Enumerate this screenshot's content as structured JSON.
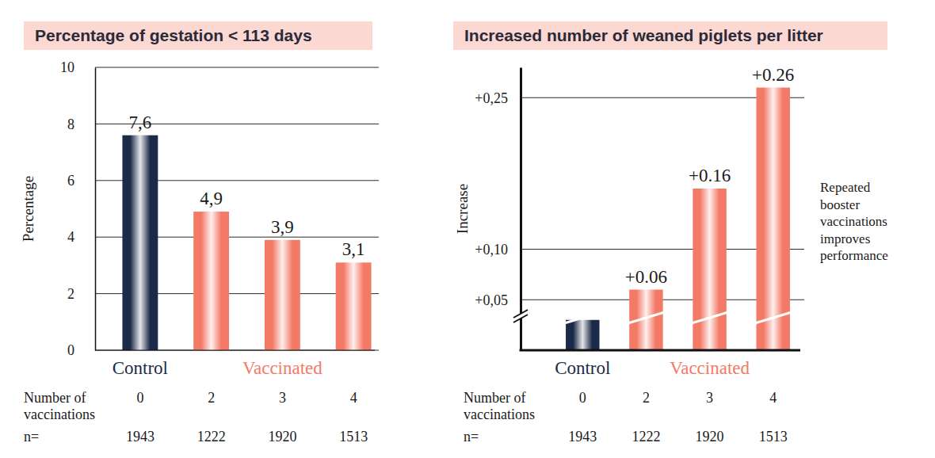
{
  "chart_data": [
    {
      "type": "bar",
      "title": "Percentage of gestation < 113 days",
      "y_label": "Percentage",
      "categories": [
        "Control",
        null,
        "Vaccinated",
        null
      ],
      "values": [
        7.6,
        4.9,
        3.9,
        3.1
      ],
      "value_labels": [
        "7,6",
        "4,9",
        "3,9",
        "3,1"
      ],
      "colors": [
        "#1b2a48",
        "#f47a68",
        "#f47a68",
        "#f47a68"
      ],
      "ylim": [
        0,
        10
      ],
      "yticks": [
        0,
        2,
        4,
        6,
        8,
        10
      ],
      "grid": true,
      "data_labels": true,
      "vaccinations_label": "Number of vaccinations",
      "vaccinations": [
        0,
        2,
        3,
        4
      ],
      "n_label": "n=",
      "n": [
        1943,
        1222,
        1920,
        1513
      ]
    },
    {
      "type": "bar",
      "title": "Increased number of weaned piglets per litter",
      "y_label": "Increase",
      "categories": [
        "Control",
        null,
        "Vaccinated",
        null
      ],
      "values": [
        0.03,
        0.06,
        0.16,
        0.26
      ],
      "value_labels": [
        null,
        "+0.06",
        "+0.16",
        "+0.26"
      ],
      "colors": [
        "#1b2a48",
        "#f47a68",
        "#f47a68",
        "#f47a68"
      ],
      "ylim": [
        0,
        0.28
      ],
      "yticks": [
        {
          "value": 0.05,
          "label": "+0,05"
        },
        {
          "value": 0.1,
          "label": "+0,10"
        },
        {
          "value": 0.25,
          "label": "+0,25"
        }
      ],
      "grid": true,
      "data_labels": true,
      "annotation": "Repeated booster vaccinations improves performance",
      "vaccinations_label": "Number of vaccinations",
      "vaccinations": [
        0,
        2,
        3,
        4
      ],
      "n_label": "n=",
      "n": [
        1943,
        1222,
        1920,
        1513
      ]
    }
  ]
}
